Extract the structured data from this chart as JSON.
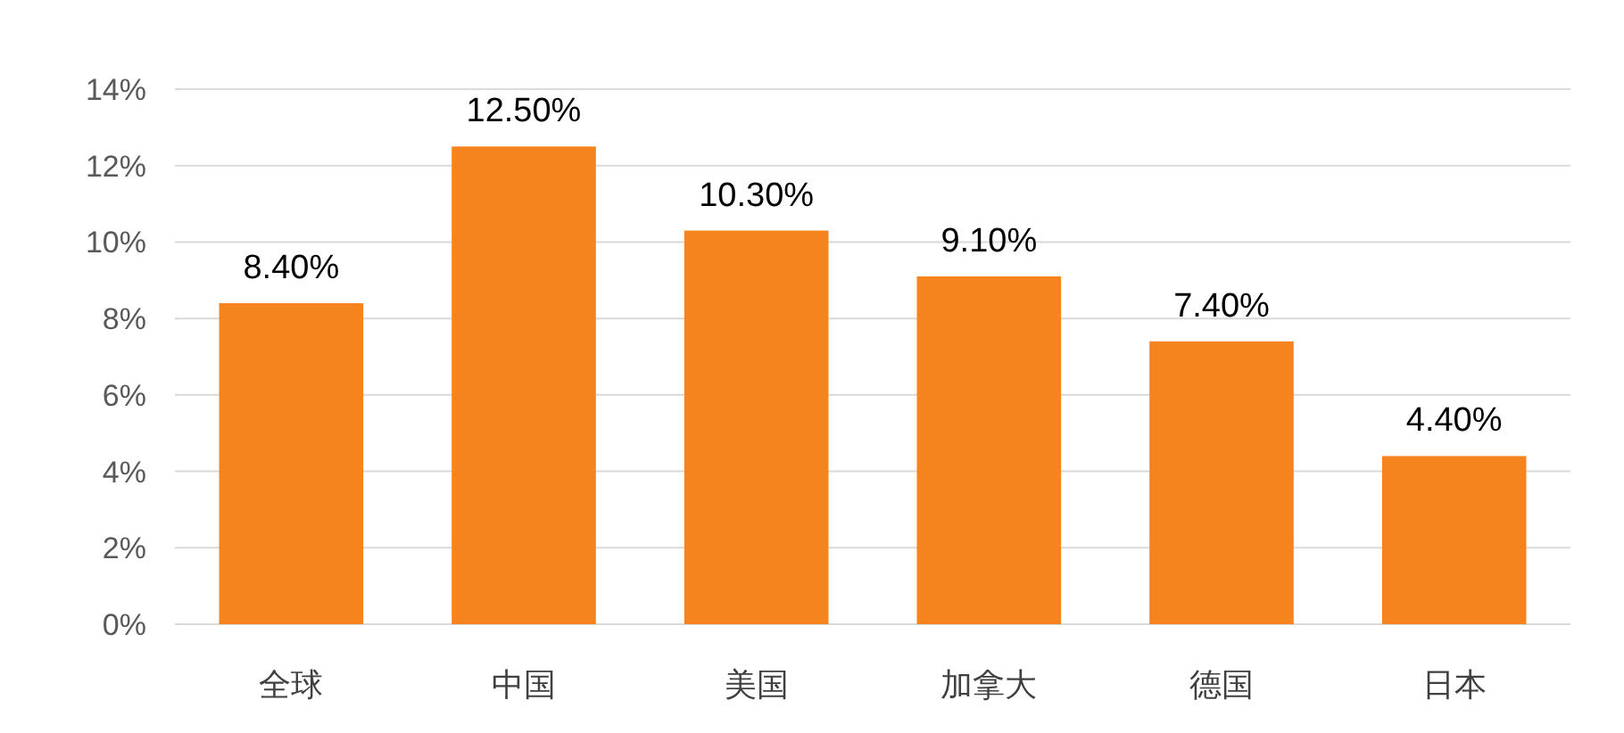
{
  "chart_data": {
    "type": "bar",
    "categories": [
      "全球",
      "中国",
      "美国",
      "加拿大",
      "德国",
      "日本"
    ],
    "values": [
      8.4,
      12.5,
      10.3,
      9.1,
      7.4,
      4.4
    ],
    "value_labels": [
      "8.40%",
      "12.50%",
      "10.30%",
      "9.10%",
      "7.40%",
      "4.40%"
    ],
    "color": "#f5841f",
    "ylim": [
      0,
      14
    ],
    "yticks": [
      {
        "value": 0,
        "label": "0%"
      },
      {
        "value": 2,
        "label": "2%"
      },
      {
        "value": 4,
        "label": "4%"
      },
      {
        "value": 6,
        "label": "6%"
      },
      {
        "value": 8,
        "label": "8%"
      },
      {
        "value": 10,
        "label": "10%"
      },
      {
        "value": 12,
        "label": "12%"
      },
      {
        "value": 14,
        "label": "14%"
      }
    ],
    "grid": "y"
  }
}
